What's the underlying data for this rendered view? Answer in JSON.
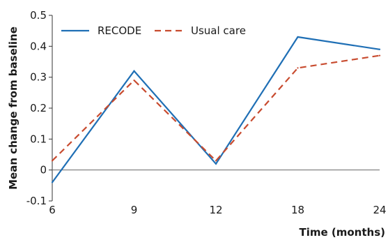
{
  "chart_data": {
    "type": "line",
    "title": "",
    "xlabel": "Time (months)",
    "ylabel": "Mean change from baseline",
    "categories": [
      "6",
      "9",
      "12",
      "18",
      "24"
    ],
    "yticks": [
      "-0.1",
      "0",
      "0.1",
      "0.2",
      "0.3",
      "0.4",
      "0.5"
    ],
    "ylim": [
      -0.1,
      0.5
    ],
    "grid": false,
    "zero_line": true,
    "legend_position": "top-left",
    "series": [
      {
        "name": "RECODE",
        "values": [
          -0.04,
          0.32,
          0.02,
          0.43,
          0.39
        ],
        "color": "#1f6fb5",
        "style": "solid"
      },
      {
        "name": "Usual care",
        "values": [
          0.03,
          0.29,
          0.03,
          0.33,
          0.37
        ],
        "color": "#c84b2f",
        "style": "dashed"
      }
    ]
  }
}
